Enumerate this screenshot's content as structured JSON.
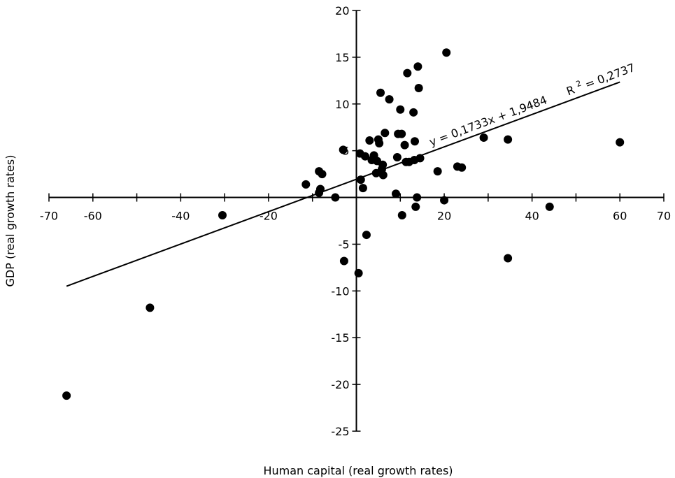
{
  "chart_data": {
    "type": "scatter",
    "title": "",
    "xlabel": "Human capital (real growth rates)",
    "ylabel": "GDP (real growth rates)",
    "xlim": [
      -70,
      70
    ],
    "ylim": [
      -25,
      20
    ],
    "x_ticks": [
      -70,
      -60,
      -40,
      -20,
      20,
      40,
      60,
      70
    ],
    "x_tick_labels": [
      "-70",
      "-60",
      "-40",
      "-20",
      "20",
      "40",
      "60",
      "70"
    ],
    "y_ticks": [
      20,
      15,
      10,
      5,
      -5,
      -10,
      -15,
      -20,
      -25
    ],
    "y_tick_labels": [
      "20",
      "15",
      "10",
      "5",
      "-5",
      "-10",
      "-15",
      "-20",
      "-25"
    ],
    "grid": false,
    "points": [
      {
        "x": -66,
        "y": -21.2
      },
      {
        "x": -47,
        "y": -11.8
      },
      {
        "x": -30.5,
        "y": -1.9
      },
      {
        "x": -11.5,
        "y": 1.4
      },
      {
        "x": -8.5,
        "y": 2.8
      },
      {
        "x": -7.8,
        "y": 2.5
      },
      {
        "x": -8.2,
        "y": 0.9
      },
      {
        "x": -8.5,
        "y": 0.5
      },
      {
        "x": -4.8,
        "y": 0.0
      },
      {
        "x": -3,
        "y": 5.1
      },
      {
        "x": -2.8,
        "y": -6.8
      },
      {
        "x": 0.5,
        "y": -8.1
      },
      {
        "x": 1,
        "y": 1.9
      },
      {
        "x": 1.5,
        "y": 1.0
      },
      {
        "x": 2.3,
        "y": -4.0
      },
      {
        "x": 0.8,
        "y": 4.7
      },
      {
        "x": 2,
        "y": 4.4
      },
      {
        "x": 3,
        "y": 6.1
      },
      {
        "x": 3.5,
        "y": 4.0
      },
      {
        "x": 4,
        "y": 4.5
      },
      {
        "x": 4.5,
        "y": 2.6
      },
      {
        "x": 4.7,
        "y": 3.9
      },
      {
        "x": 5,
        "y": 6.2
      },
      {
        "x": 5.2,
        "y": 5.8
      },
      {
        "x": 5.5,
        "y": 11.2
      },
      {
        "x": 5.8,
        "y": 3.0
      },
      {
        "x": 6,
        "y": 3.5
      },
      {
        "x": 6.1,
        "y": 2.4
      },
      {
        "x": 6.5,
        "y": 6.9
      },
      {
        "x": 7.5,
        "y": 10.5
      },
      {
        "x": 9,
        "y": 0.4
      },
      {
        "x": 9.3,
        "y": 4.3
      },
      {
        "x": 9.5,
        "y": 6.8
      },
      {
        "x": 10,
        "y": 9.4
      },
      {
        "x": 10.3,
        "y": 6.8
      },
      {
        "x": 10.4,
        "y": -1.9
      },
      {
        "x": 11,
        "y": 5.6
      },
      {
        "x": 11.3,
        "y": 3.8
      },
      {
        "x": 11.6,
        "y": 13.3
      },
      {
        "x": 12,
        "y": 3.8
      },
      {
        "x": 13,
        "y": 9.1
      },
      {
        "x": 13.2,
        "y": 4.0
      },
      {
        "x": 13.3,
        "y": 6.0
      },
      {
        "x": 13.5,
        "y": -1.0
      },
      {
        "x": 13.8,
        "y": 0.0
      },
      {
        "x": 14,
        "y": 14.0
      },
      {
        "x": 14.2,
        "y": 11.7
      },
      {
        "x": 14.5,
        "y": 4.2
      },
      {
        "x": 18.5,
        "y": 2.8
      },
      {
        "x": 20,
        "y": -0.3
      },
      {
        "x": 20.5,
        "y": 15.5
      },
      {
        "x": 23,
        "y": 3.3
      },
      {
        "x": 24,
        "y": 3.2
      },
      {
        "x": 29,
        "y": 6.4
      },
      {
        "x": 34.5,
        "y": 6.2
      },
      {
        "x": 34.5,
        "y": -6.5
      },
      {
        "x": 44,
        "y": -1.0
      },
      {
        "x": 60,
        "y": 5.9
      }
    ],
    "trendline": {
      "slope": 0.1733,
      "intercept": 1.9484,
      "x_range": [
        -66,
        60
      ],
      "equation": "y = 0,1733x + 1,9484",
      "r_squared_prefix": "R",
      "r_squared_sup": "2",
      "r_squared_value": " = 0,2737"
    },
    "colors": {
      "points": "#000000",
      "line": "#000000",
      "axis": "#000000"
    }
  }
}
